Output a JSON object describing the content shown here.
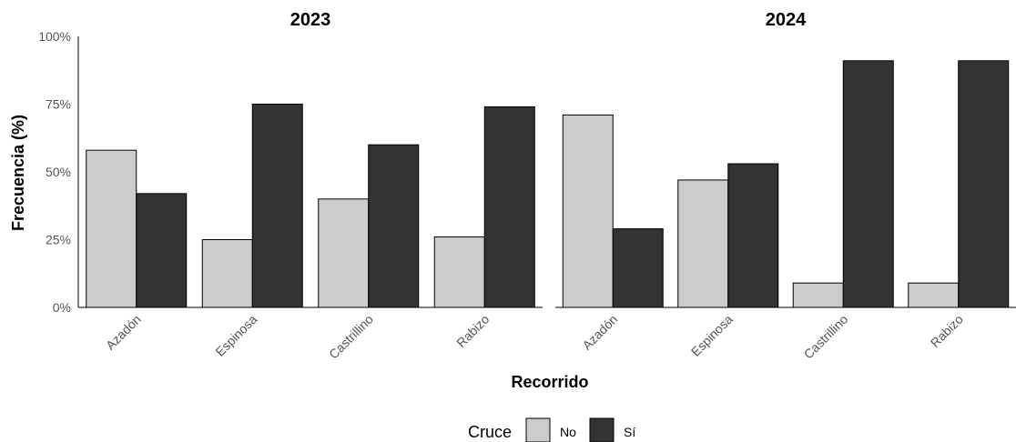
{
  "chart_data": {
    "type": "bar",
    "xlabel": "Recorrido",
    "ylabel": "Frecuencia (%)",
    "ylim": [
      0,
      100
    ],
    "yticks": [
      "0%",
      "25%",
      "50%",
      "75%",
      "100%"
    ],
    "legend": {
      "title": "Cruce",
      "placement": "bottom",
      "entries": [
        {
          "name": "No",
          "color": "#cccccc"
        },
        {
          "name": "Sí",
          "color": "#333333"
        }
      ]
    },
    "panels": [
      {
        "title": "2023",
        "categories": [
          "Azadón",
          "Espinosa",
          "Castrillino",
          "Rabizo"
        ],
        "series": [
          {
            "name": "No",
            "values": [
              58,
              25,
              40,
              26
            ]
          },
          {
            "name": "Sí",
            "values": [
              42,
              75,
              60,
              74
            ]
          }
        ]
      },
      {
        "title": "2024",
        "categories": [
          "Azadón",
          "Espinosa",
          "Castrillino",
          "Rabizo"
        ],
        "series": [
          {
            "name": "No",
            "values": [
              71,
              47,
              9,
              9
            ]
          },
          {
            "name": "Sí",
            "values": [
              29,
              53,
              91,
              91
            ]
          }
        ]
      }
    ]
  }
}
